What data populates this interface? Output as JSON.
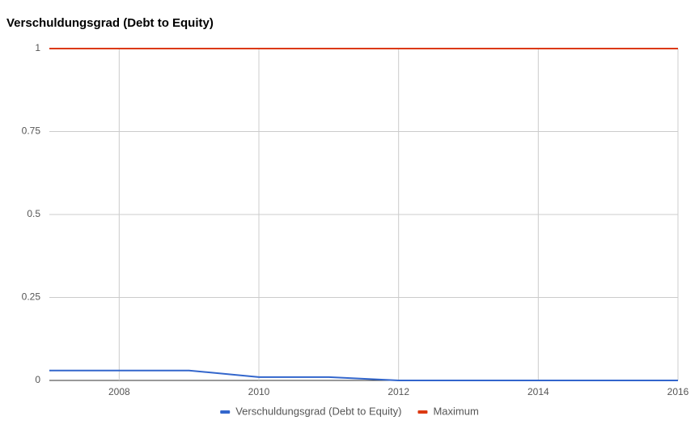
{
  "chart_data": {
    "type": "line",
    "title": "Verschuldungsgrad (Debt to Equity)",
    "x": [
      2007,
      2008,
      2009,
      2010,
      2011,
      2012,
      2013,
      2014,
      2015,
      2016
    ],
    "series": [
      {
        "name": "Verschuldungsgrad (Debt to Equity)",
        "color": "#3366cc",
        "values": [
          0.03,
          0.03,
          0.03,
          0.01,
          0.01,
          0,
          0,
          0,
          0,
          0
        ]
      },
      {
        "name": "Maximum",
        "color": "#dc3912",
        "values": [
          1,
          1,
          1,
          1,
          1,
          1,
          1,
          1,
          1,
          1
        ]
      }
    ],
    "xlim": [
      2007,
      2016
    ],
    "xticks": [
      2008,
      2010,
      2012,
      2014,
      2016
    ],
    "ylim": [
      0,
      1
    ],
    "yticks": [
      0,
      0.25,
      0.5,
      0.75,
      1
    ],
    "grid": true,
    "legend": "bottom"
  }
}
